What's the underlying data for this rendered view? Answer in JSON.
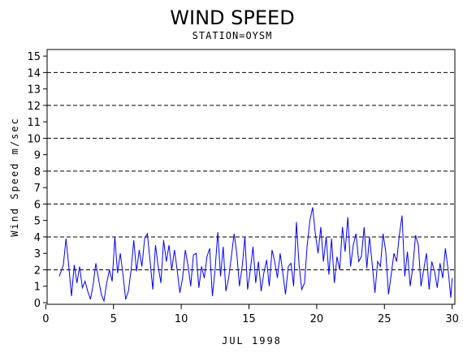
{
  "chart_data": {
    "type": "line",
    "title": "WIND SPEED",
    "subtitle": "STATION=OYSM",
    "xlabel": "JUL 1998",
    "ylabel": "Wind Speed m/sec",
    "xlim": [
      0.1,
      30.2
    ],
    "ylim": [
      -0.1,
      15.4
    ],
    "x_ticks": [
      0,
      5,
      10,
      15,
      20,
      25,
      30
    ],
    "y_ticks": [
      0,
      1,
      2,
      3,
      4,
      5,
      6,
      7,
      8,
      9,
      10,
      11,
      12,
      13,
      14,
      15
    ],
    "gridlines_y": [
      2,
      4,
      6,
      8,
      10,
      12,
      14
    ],
    "grid": "dashed horizontal",
    "line_color": "#0000ff",
    "series": [
      {
        "values": [
          [
            1.0,
            1.6
          ],
          [
            1.3,
            2.3
          ],
          [
            1.5,
            3.9
          ],
          [
            1.7,
            2.2
          ],
          [
            1.9,
            0.4
          ],
          [
            2.1,
            2.3
          ],
          [
            2.3,
            1.2
          ],
          [
            2.5,
            2.2
          ],
          [
            2.7,
            0.9
          ],
          [
            2.9,
            1.3
          ],
          [
            3.1,
            0.7
          ],
          [
            3.3,
            0.2
          ],
          [
            3.5,
            1.1
          ],
          [
            3.7,
            2.4
          ],
          [
            3.9,
            1.4
          ],
          [
            4.1,
            0.5
          ],
          [
            4.3,
            0.1
          ],
          [
            4.5,
            1.2
          ],
          [
            4.7,
            2.0
          ],
          [
            4.9,
            1.3
          ],
          [
            5.1,
            4.0
          ],
          [
            5.3,
            1.8
          ],
          [
            5.5,
            3.0
          ],
          [
            5.7,
            1.7
          ],
          [
            5.9,
            0.2
          ],
          [
            6.1,
            0.7
          ],
          [
            6.3,
            2.0
          ],
          [
            6.5,
            3.8
          ],
          [
            6.7,
            1.9
          ],
          [
            6.9,
            3.2
          ],
          [
            7.1,
            2.2
          ],
          [
            7.3,
            3.9
          ],
          [
            7.5,
            4.2
          ],
          [
            7.7,
            2.5
          ],
          [
            7.9,
            0.8
          ],
          [
            8.1,
            3.5
          ],
          [
            8.3,
            2.2
          ],
          [
            8.5,
            1.2
          ],
          [
            8.7,
            3.8
          ],
          [
            8.9,
            2.5
          ],
          [
            9.1,
            3.5
          ],
          [
            9.3,
            2.0
          ],
          [
            9.5,
            3.2
          ],
          [
            9.7,
            2.0
          ],
          [
            9.9,
            0.6
          ],
          [
            10.1,
            1.5
          ],
          [
            10.3,
            3.2
          ],
          [
            10.5,
            2.3
          ],
          [
            10.7,
            1.0
          ],
          [
            10.9,
            2.9
          ],
          [
            11.1,
            3.0
          ],
          [
            11.3,
            0.9
          ],
          [
            11.5,
            2.2
          ],
          [
            11.7,
            1.5
          ],
          [
            11.9,
            2.8
          ],
          [
            12.1,
            3.3
          ],
          [
            12.3,
            0.4
          ],
          [
            12.5,
            2.0
          ],
          [
            12.7,
            4.3
          ],
          [
            12.9,
            1.6
          ],
          [
            13.1,
            3.4
          ],
          [
            13.3,
            0.7
          ],
          [
            13.5,
            1.5
          ],
          [
            13.7,
            2.8
          ],
          [
            13.9,
            4.2
          ],
          [
            14.1,
            3.0
          ],
          [
            14.3,
            1.0
          ],
          [
            14.5,
            2.2
          ],
          [
            14.7,
            4.0
          ],
          [
            14.9,
            0.8
          ],
          [
            15.1,
            2.0
          ],
          [
            15.3,
            3.4
          ],
          [
            15.5,
            1.2
          ],
          [
            15.7,
            2.5
          ],
          [
            15.9,
            0.7
          ],
          [
            16.1,
            1.8
          ],
          [
            16.3,
            2.6
          ],
          [
            16.5,
            1.0
          ],
          [
            16.7,
            3.2
          ],
          [
            16.9,
            2.5
          ],
          [
            17.1,
            1.5
          ],
          [
            17.3,
            3.0
          ],
          [
            17.5,
            1.8
          ],
          [
            17.7,
            0.5
          ],
          [
            17.9,
            2.2
          ],
          [
            18.1,
            2.4
          ],
          [
            18.3,
            1.0
          ],
          [
            18.5,
            4.9
          ],
          [
            18.7,
            2.3
          ],
          [
            18.9,
            0.8
          ],
          [
            19.1,
            1.2
          ],
          [
            19.3,
            3.5
          ],
          [
            19.5,
            5.0
          ],
          [
            19.7,
            5.8
          ],
          [
            19.9,
            4.2
          ],
          [
            20.1,
            3.0
          ],
          [
            20.3,
            4.6
          ],
          [
            20.5,
            2.5
          ],
          [
            20.7,
            4.0
          ],
          [
            20.9,
            1.7
          ],
          [
            21.1,
            3.9
          ],
          [
            21.3,
            1.2
          ],
          [
            21.5,
            2.8
          ],
          [
            21.7,
            2.0
          ],
          [
            21.9,
            4.6
          ],
          [
            22.1,
            3.1
          ],
          [
            22.3,
            5.2
          ],
          [
            22.5,
            2.2
          ],
          [
            22.7,
            3.5
          ],
          [
            22.9,
            4.2
          ],
          [
            23.1,
            2.5
          ],
          [
            23.3,
            2.8
          ],
          [
            23.5,
            4.6
          ],
          [
            23.7,
            2.1
          ],
          [
            23.9,
            4.0
          ],
          [
            24.1,
            2.3
          ],
          [
            24.3,
            0.6
          ],
          [
            24.5,
            2.5
          ],
          [
            24.7,
            2.2
          ],
          [
            24.9,
            4.2
          ],
          [
            25.1,
            3.1
          ],
          [
            25.3,
            0.5
          ],
          [
            25.5,
            1.7
          ],
          [
            25.7,
            3.0
          ],
          [
            25.9,
            2.5
          ],
          [
            26.1,
            4.1
          ],
          [
            26.3,
            5.3
          ],
          [
            26.5,
            1.6
          ],
          [
            26.7,
            3.1
          ],
          [
            26.9,
            1.0
          ],
          [
            27.1,
            2.2
          ],
          [
            27.3,
            4.1
          ],
          [
            27.5,
            3.5
          ],
          [
            27.7,
            1.0
          ],
          [
            27.9,
            2.0
          ],
          [
            28.1,
            3.0
          ],
          [
            28.3,
            0.8
          ],
          [
            28.5,
            2.5
          ],
          [
            28.7,
            1.9
          ],
          [
            28.9,
            0.9
          ],
          [
            29.1,
            2.4
          ],
          [
            29.3,
            1.5
          ],
          [
            29.5,
            3.3
          ],
          [
            29.7,
            2.0
          ],
          [
            29.9,
            0.3
          ],
          [
            30.0,
            1.5
          ]
        ]
      }
    ]
  }
}
